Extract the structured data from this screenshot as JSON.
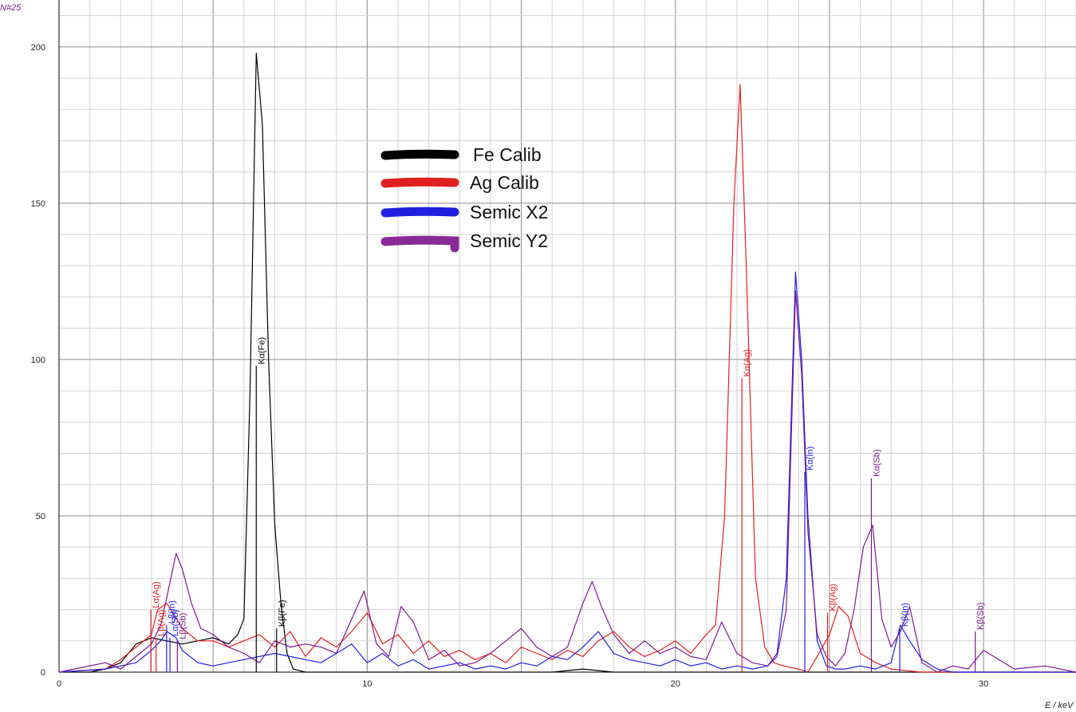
{
  "chart_data": {
    "type": "line",
    "ylabel": "N#25",
    "xlabel": "E / keV",
    "xlim": [
      0,
      33
    ],
    "ylim": [
      0,
      215
    ],
    "x_major_ticks": [
      0,
      10,
      20,
      30
    ],
    "y_major_ticks": [
      0,
      50,
      100,
      150,
      200
    ],
    "grid": true,
    "legend_position": "upper-center",
    "series": [
      {
        "name": "Fe Calib",
        "color": "#000000",
        "x": [
          0,
          1,
          1.5,
          2,
          2.5,
          3,
          3.5,
          4,
          4.5,
          5,
          5.5,
          5.8,
          6,
          6.2,
          6.4,
          6.6,
          6.8,
          7,
          7.2,
          7.4,
          7.6,
          8,
          9,
          10,
          12,
          14,
          16,
          17,
          18,
          20,
          22,
          24,
          26,
          28,
          30,
          33
        ],
        "y": [
          0,
          0,
          1,
          3,
          9,
          11,
          10,
          9,
          10,
          11,
          9,
          12,
          17,
          90,
          198,
          175,
          100,
          47,
          22,
          6,
          1,
          0,
          0,
          0,
          0,
          0,
          0,
          1,
          0,
          0,
          0,
          0,
          0,
          0,
          0,
          0
        ]
      },
      {
        "name": "Ag Calib",
        "color": "#e02020",
        "x": [
          0,
          1.5,
          2,
          2.5,
          3,
          3.2,
          3.5,
          4,
          4.5,
          5,
          5.5,
          6,
          6.5,
          7,
          7.5,
          8,
          8.5,
          9,
          9.5,
          10,
          10.5,
          11,
          11.5,
          12,
          12.5,
          13,
          13.5,
          14,
          14.5,
          15,
          15.5,
          16,
          16.5,
          17,
          17.5,
          18,
          18.5,
          19,
          19.5,
          20,
          20.5,
          21,
          21.3,
          21.6,
          21.9,
          22.1,
          22.3,
          22.6,
          22.9,
          23.2,
          23.5,
          24,
          24.3,
          24.6,
          25,
          25.3,
          25.6,
          26,
          26.5,
          27,
          28,
          29,
          30,
          33
        ],
        "y": [
          0,
          1,
          4,
          8,
          12,
          20,
          22,
          14,
          10,
          10,
          8,
          10,
          12,
          8,
          13,
          5,
          11,
          8,
          13,
          19,
          9,
          12,
          6,
          10,
          5,
          7,
          4,
          6,
          3,
          8,
          6,
          4,
          7,
          5,
          10,
          13,
          8,
          5,
          7,
          10,
          6,
          12,
          15,
          50,
          150,
          188,
          130,
          30,
          8,
          3,
          2,
          1,
          0,
          5,
          12,
          21,
          18,
          6,
          3,
          1,
          0,
          0,
          0,
          0
        ]
      },
      {
        "name": "Semic X2",
        "color": "#2020e0",
        "x": [
          0,
          1.5,
          2,
          2.5,
          3,
          3.3,
          3.5,
          3.8,
          4,
          4.5,
          5,
          5.5,
          6,
          6.5,
          7,
          7.5,
          8,
          8.5,
          9,
          9.5,
          10,
          10.5,
          11,
          11.5,
          12,
          12.5,
          13,
          13.5,
          14,
          14.5,
          15,
          15.5,
          16,
          16.5,
          17,
          17.5,
          18,
          18.5,
          19,
          19.5,
          20,
          20.5,
          21,
          21.5,
          22,
          22.5,
          23,
          23.3,
          23.6,
          23.9,
          24.1,
          24.3,
          24.6,
          24.9,
          25.2,
          25.5,
          26,
          26.5,
          27,
          27.3,
          27.6,
          28,
          28.5,
          29,
          30,
          33
        ],
        "y": [
          0,
          1,
          2,
          3,
          7,
          10,
          13,
          11,
          7,
          3,
          2,
          3,
          4,
          5,
          6,
          5,
          4,
          3,
          6,
          9,
          3,
          6,
          2,
          4,
          1,
          2,
          3,
          1,
          2,
          1,
          3,
          2,
          5,
          4,
          8,
          13,
          6,
          4,
          3,
          2,
          4,
          2,
          3,
          1,
          2,
          1,
          2,
          6,
          30,
          128,
          100,
          50,
          10,
          2,
          1,
          1,
          2,
          1,
          3,
          15,
          10,
          4,
          1,
          0,
          0,
          0
        ]
      },
      {
        "name": "Semic Y2",
        "color": "#7a1a8c",
        "x": [
          0,
          1.5,
          2,
          2.5,
          3,
          3.3,
          3.5,
          3.8,
          4,
          4.3,
          4.6,
          5,
          5.5,
          6,
          6.5,
          7,
          7.5,
          8,
          8.5,
          9,
          9.5,
          9.9,
          10.3,
          10.7,
          11.1,
          11.5,
          12,
          12.5,
          13,
          13.5,
          14,
          14.5,
          15,
          15.5,
          16,
          16.5,
          17,
          17.3,
          17.6,
          18,
          18.5,
          19,
          19.5,
          20,
          20.5,
          21,
          21.5,
          22,
          22.5,
          23,
          23.3,
          23.6,
          23.9,
          24.1,
          24.3,
          24.6,
          24.9,
          25.2,
          25.5,
          25.8,
          26.1,
          26.4,
          26.7,
          27,
          27.3,
          27.6,
          28,
          28.5,
          29,
          29.5,
          30,
          31,
          32,
          33
        ],
        "y": [
          0,
          3,
          1,
          5,
          9,
          15,
          24,
          38,
          33,
          22,
          14,
          12,
          8,
          6,
          3,
          10,
          8,
          9,
          8,
          6,
          17,
          26,
          9,
          5,
          21,
          16,
          4,
          7,
          2,
          3,
          6,
          10,
          14,
          8,
          5,
          8,
          22,
          29,
          21,
          12,
          6,
          10,
          6,
          8,
          5,
          4,
          16,
          6,
          3,
          2,
          5,
          20,
          122,
          95,
          45,
          12,
          5,
          2,
          6,
          20,
          40,
          47,
          17,
          8,
          13,
          21,
          3,
          0,
          2,
          1,
          7,
          1,
          2,
          0
        ]
      }
    ],
    "markers": [
      {
        "label": "Kα(Fe)",
        "x": 6.4,
        "y": 98,
        "color": "#000000"
      },
      {
        "label": "Kβ(Fe)",
        "x": 7.06,
        "y": 14,
        "color": "#000000"
      },
      {
        "label": "Kα(Ag)",
        "x": 22.16,
        "y": 94,
        "color": "#e02020"
      },
      {
        "label": "Kβ(Ag)",
        "x": 24.94,
        "y": 19,
        "color": "#e02020"
      },
      {
        "label": "Lα(Ag)",
        "x": 2.98,
        "y": 20,
        "color": "#e02020"
      },
      {
        "label": "Lβ(Ag)",
        "x": 3.15,
        "y": 11,
        "color": "#e02020"
      },
      {
        "label": "Kα(In)",
        "x": 24.2,
        "y": 64,
        "color": "#2020e0"
      },
      {
        "label": "Kβ(In)",
        "x": 27.28,
        "y": 14,
        "color": "#2020e0"
      },
      {
        "label": "Lβ(In)",
        "x": 3.49,
        "y": 15,
        "color": "#2020e0"
      },
      {
        "label": "Lα(Sb)",
        "x": 3.6,
        "y": 11,
        "color": "#2020e0"
      },
      {
        "label": "Kα(Sb)",
        "x": 26.36,
        "y": 62,
        "color": "#7a1a8c"
      },
      {
        "label": "Kβ(Sb)",
        "x": 29.73,
        "y": 13,
        "color": "#7a1a8c"
      },
      {
        "label": "Lβ(Sb)",
        "x": 3.84,
        "y": 10,
        "color": "#7a1a8c"
      }
    ],
    "colors": {
      "grid_major": "#8c8c8c",
      "grid_minor": "#d2d2d2",
      "axis": "#000000",
      "ylabel": "#7a1a8c"
    }
  },
  "legend": {
    "entries": [
      {
        "label": "Fe Calib",
        "color": "#000000"
      },
      {
        "label": "Ag Calib",
        "color": "#e02020"
      },
      {
        "label": "Semic X2",
        "color": "#2020e0"
      },
      {
        "label": "Semic Y2",
        "color": "#8a2a98"
      }
    ]
  }
}
